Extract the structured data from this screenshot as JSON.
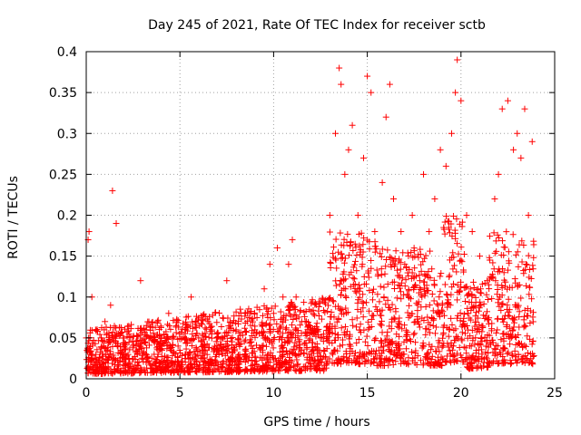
{
  "chart_data": {
    "type": "scatter",
    "title": "Day 245 of 2021, Rate Of TEC Index for receiver sctb",
    "xlabel": "GPS time / hours",
    "ylabel": "ROTI / TECUs",
    "xlim": [
      0,
      25
    ],
    "ylim": [
      0,
      0.4
    ],
    "xticks": [
      0,
      5,
      10,
      15,
      20,
      25
    ],
    "yticks": [
      0,
      0.05,
      0.1,
      0.15,
      0.2,
      0.25,
      0.3,
      0.35,
      0.4
    ],
    "xtick_labels": [
      "0",
      "5",
      "10",
      "15",
      "20",
      "25"
    ],
    "ytick_labels": [
      "0",
      "0.05",
      "0.1",
      "0.15",
      "0.2",
      "0.25",
      "0.3",
      "0.35",
      "0.4"
    ],
    "grid": true,
    "marker": "+",
    "color": "#ff0000",
    "series": [
      {
        "name": "ROTI",
        "x": [
          0.0,
          0.1,
          0.15,
          0.3,
          0.5,
          0.8,
          1.0,
          1.3,
          1.4,
          1.6,
          2.0,
          2.5,
          2.9,
          3.2,
          3.5,
          4.0,
          4.4,
          4.9,
          5.3,
          5.6,
          6.0,
          6.5,
          7.0,
          7.5,
          8.0,
          8.5,
          9.0,
          9.5,
          9.8,
          10.0,
          10.2,
          10.5,
          10.8,
          11.0,
          11.2,
          11.5,
          12.0,
          12.5,
          13.0,
          13.3,
          13.5,
          13.6,
          13.8,
          14.0,
          14.2,
          14.5,
          14.8,
          15.0,
          15.2,
          15.4,
          15.8,
          16.0,
          16.2,
          16.4,
          16.8,
          17.0,
          17.4,
          17.8,
          18.0,
          18.3,
          18.6,
          18.9,
          19.2,
          19.5,
          19.7,
          19.8,
          20.0,
          20.3,
          20.6,
          21.0,
          21.4,
          21.8,
          22.0,
          22.2,
          22.5,
          22.8,
          23.0,
          23.2,
          23.4,
          23.6,
          23.8
        ],
        "y": [
          0.05,
          0.17,
          0.18,
          0.1,
          0.06,
          0.05,
          0.07,
          0.09,
          0.23,
          0.19,
          0.05,
          0.04,
          0.12,
          0.06,
          0.05,
          0.05,
          0.08,
          0.04,
          0.06,
          0.1,
          0.05,
          0.07,
          0.05,
          0.12,
          0.06,
          0.08,
          0.06,
          0.11,
          0.14,
          0.08,
          0.16,
          0.1,
          0.14,
          0.17,
          0.1,
          0.07,
          0.06,
          0.05,
          0.2,
          0.3,
          0.38,
          0.36,
          0.25,
          0.28,
          0.31,
          0.2,
          0.27,
          0.37,
          0.35,
          0.18,
          0.24,
          0.32,
          0.36,
          0.22,
          0.18,
          0.14,
          0.2,
          0.12,
          0.25,
          0.18,
          0.22,
          0.28,
          0.26,
          0.3,
          0.35,
          0.39,
          0.34,
          0.2,
          0.18,
          0.15,
          0.12,
          0.22,
          0.25,
          0.33,
          0.34,
          0.28,
          0.3,
          0.27,
          0.33,
          0.2,
          0.29
        ]
      }
    ]
  }
}
